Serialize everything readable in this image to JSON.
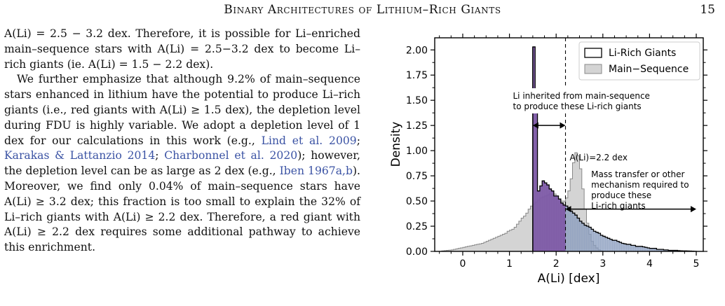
{
  "header": {
    "running_title": "Binary Architectures of Lithium–Rich Giants",
    "page_number": "15"
  },
  "body": {
    "p1": "A(Li) = 2.5 − 3.2 dex. Therefore, it is possible for Li–enriched main–sequence stars with A(Li) = 2.5−3.2 dex to become Li–rich giants (ie. A(Li) = 1.5 − 2.2 dex).",
    "p2_a": "We further emphasize that although 9.2% of main–sequence stars enhanced in lithium have the potential to produce Li–rich giants (i.e., red giants with A(Li) ≥ 1.5 dex), the depletion level during FDU is highly variable. We adopt a depletion level of 1 dex for our calculations in this work (e.g., ",
    "cite_1": "Lind et al. 2009",
    "sep_1": "; ",
    "cite_2": "Karakas & Lattanzio 2014",
    "sep_2": "; ",
    "cite_3": "Charbonnel et al. 2020",
    "p2_b": "); however, the depletion level can be as large as 2 dex (e.g., ",
    "cite_4": "Iben 1967a,b",
    "p2_c": "). Moreover, we find only 0.04% of main–sequence stars have A(Li) ≥ 3.2 dex; this fraction is too small to explain the 32% of Li–rich giants with A(Li) ≥ 2.2 dex. Therefore, a red giant with A(Li) ≥ 2.2 dex requires some additional pathway to achieve this enrichment."
  },
  "chart_data": {
    "type": "histogram",
    "xlabel": "A(Li) [dex]",
    "ylabel": "Density",
    "xlim": [
      -0.6,
      5.15
    ],
    "ylim": [
      0,
      2.12
    ],
    "xticks": [
      0,
      1,
      2,
      3,
      4,
      5
    ],
    "yticks": [
      0.0,
      0.25,
      0.5,
      0.75,
      1.0,
      1.25,
      1.5,
      1.75,
      2.0
    ],
    "legend": {
      "position": "top-right",
      "entries": [
        "Li-Rich Giants",
        "Main−Sequence"
      ]
    },
    "colors": {
      "main_sequence_fill": "#d4d4d4",
      "main_sequence_edge": "#888888",
      "li_rich_edge": "#000000",
      "shade_below": "#7d5aa6",
      "shade_above": "#8a9cbd"
    },
    "bin_width": 0.05,
    "main_sequence": {
      "x": [
        -0.45,
        -0.4,
        -0.35,
        -0.3,
        -0.25,
        -0.2,
        -0.15,
        -0.1,
        -0.05,
        0.0,
        0.05,
        0.1,
        0.15,
        0.2,
        0.25,
        0.3,
        0.35,
        0.4,
        0.45,
        0.5,
        0.55,
        0.6,
        0.65,
        0.7,
        0.75,
        0.8,
        0.85,
        0.9,
        0.95,
        1.0,
        1.05,
        1.1,
        1.15,
        1.2,
        1.25,
        1.3,
        1.35,
        1.4,
        1.45,
        1.5,
        1.55,
        1.6,
        1.65,
        1.7,
        1.75,
        1.8,
        1.85,
        1.9,
        1.95,
        2.0,
        2.05,
        2.1,
        2.15,
        2.2,
        2.25,
        2.3,
        2.35,
        2.4,
        2.45,
        2.5,
        2.55,
        2.6,
        2.65,
        2.7,
        2.75,
        2.8,
        2.85,
        2.9,
        2.95
      ],
      "density": [
        0.005,
        0.008,
        0.01,
        0.012,
        0.015,
        0.02,
        0.025,
        0.03,
        0.035,
        0.04,
        0.045,
        0.05,
        0.055,
        0.06,
        0.065,
        0.07,
        0.075,
        0.08,
        0.09,
        0.1,
        0.11,
        0.12,
        0.13,
        0.14,
        0.15,
        0.16,
        0.17,
        0.18,
        0.2,
        0.21,
        0.22,
        0.24,
        0.27,
        0.3,
        0.33,
        0.35,
        0.38,
        0.42,
        0.45,
        0.47,
        0.49,
        0.51,
        0.53,
        0.54,
        0.55,
        0.56,
        0.57,
        0.56,
        0.57,
        0.55,
        0.52,
        0.5,
        0.5,
        0.53,
        0.6,
        0.72,
        0.88,
        0.98,
        0.95,
        0.82,
        0.62,
        0.42,
        0.28,
        0.17,
        0.1,
        0.06,
        0.035,
        0.015,
        0.005
      ]
    },
    "li_rich_giants": {
      "x": [
        1.5,
        1.55,
        1.6,
        1.65,
        1.7,
        1.75,
        1.8,
        1.85,
        1.9,
        1.95,
        2.0,
        2.05,
        2.1,
        2.15,
        2.2,
        2.25,
        2.3,
        2.35,
        2.4,
        2.45,
        2.5,
        2.55,
        2.6,
        2.65,
        2.7,
        2.75,
        2.8,
        2.85,
        2.9,
        2.95,
        3.0,
        3.05,
        3.1,
        3.15,
        3.2,
        3.25,
        3.3,
        3.35,
        3.4,
        3.45,
        3.5,
        3.55,
        3.6,
        3.65,
        3.7,
        3.75,
        3.8,
        3.85,
        3.9,
        3.95,
        4.0,
        4.05,
        4.1,
        4.15,
        4.2,
        4.25,
        4.3,
        4.35,
        4.4,
        4.45,
        4.5,
        4.55,
        4.6,
        4.65,
        4.7,
        4.75,
        4.8,
        4.85,
        4.9,
        4.95
      ],
      "density": [
        2.03,
        1.4,
        0.6,
        0.65,
        0.7,
        0.68,
        0.66,
        0.62,
        0.6,
        0.55,
        0.55,
        0.52,
        0.48,
        0.46,
        0.45,
        0.42,
        0.4,
        0.38,
        0.36,
        0.33,
        0.3,
        0.28,
        0.26,
        0.25,
        0.24,
        0.22,
        0.2,
        0.19,
        0.18,
        0.16,
        0.15,
        0.14,
        0.13,
        0.12,
        0.11,
        0.11,
        0.1,
        0.09,
        0.08,
        0.075,
        0.07,
        0.07,
        0.06,
        0.06,
        0.05,
        0.05,
        0.05,
        0.045,
        0.04,
        0.035,
        0.03,
        0.03,
        0.03,
        0.02,
        0.02,
        0.02,
        0.015,
        0.015,
        0.01,
        0.01,
        0.01,
        0.01,
        0.008,
        0.006,
        0.005,
        0.005,
        0.004,
        0.003,
        0.002,
        0.001
      ]
    },
    "reference_line": {
      "x": 2.2,
      "label": "A(Li)=2.2 dex"
    },
    "annotations": {
      "inherited": "Li inherited from main-sequence\nto produce these Li-rich giants",
      "mass_transfer": "Mass transfer or other\nmechanism required to\nproduce these\nLi-rich giants"
    }
  }
}
